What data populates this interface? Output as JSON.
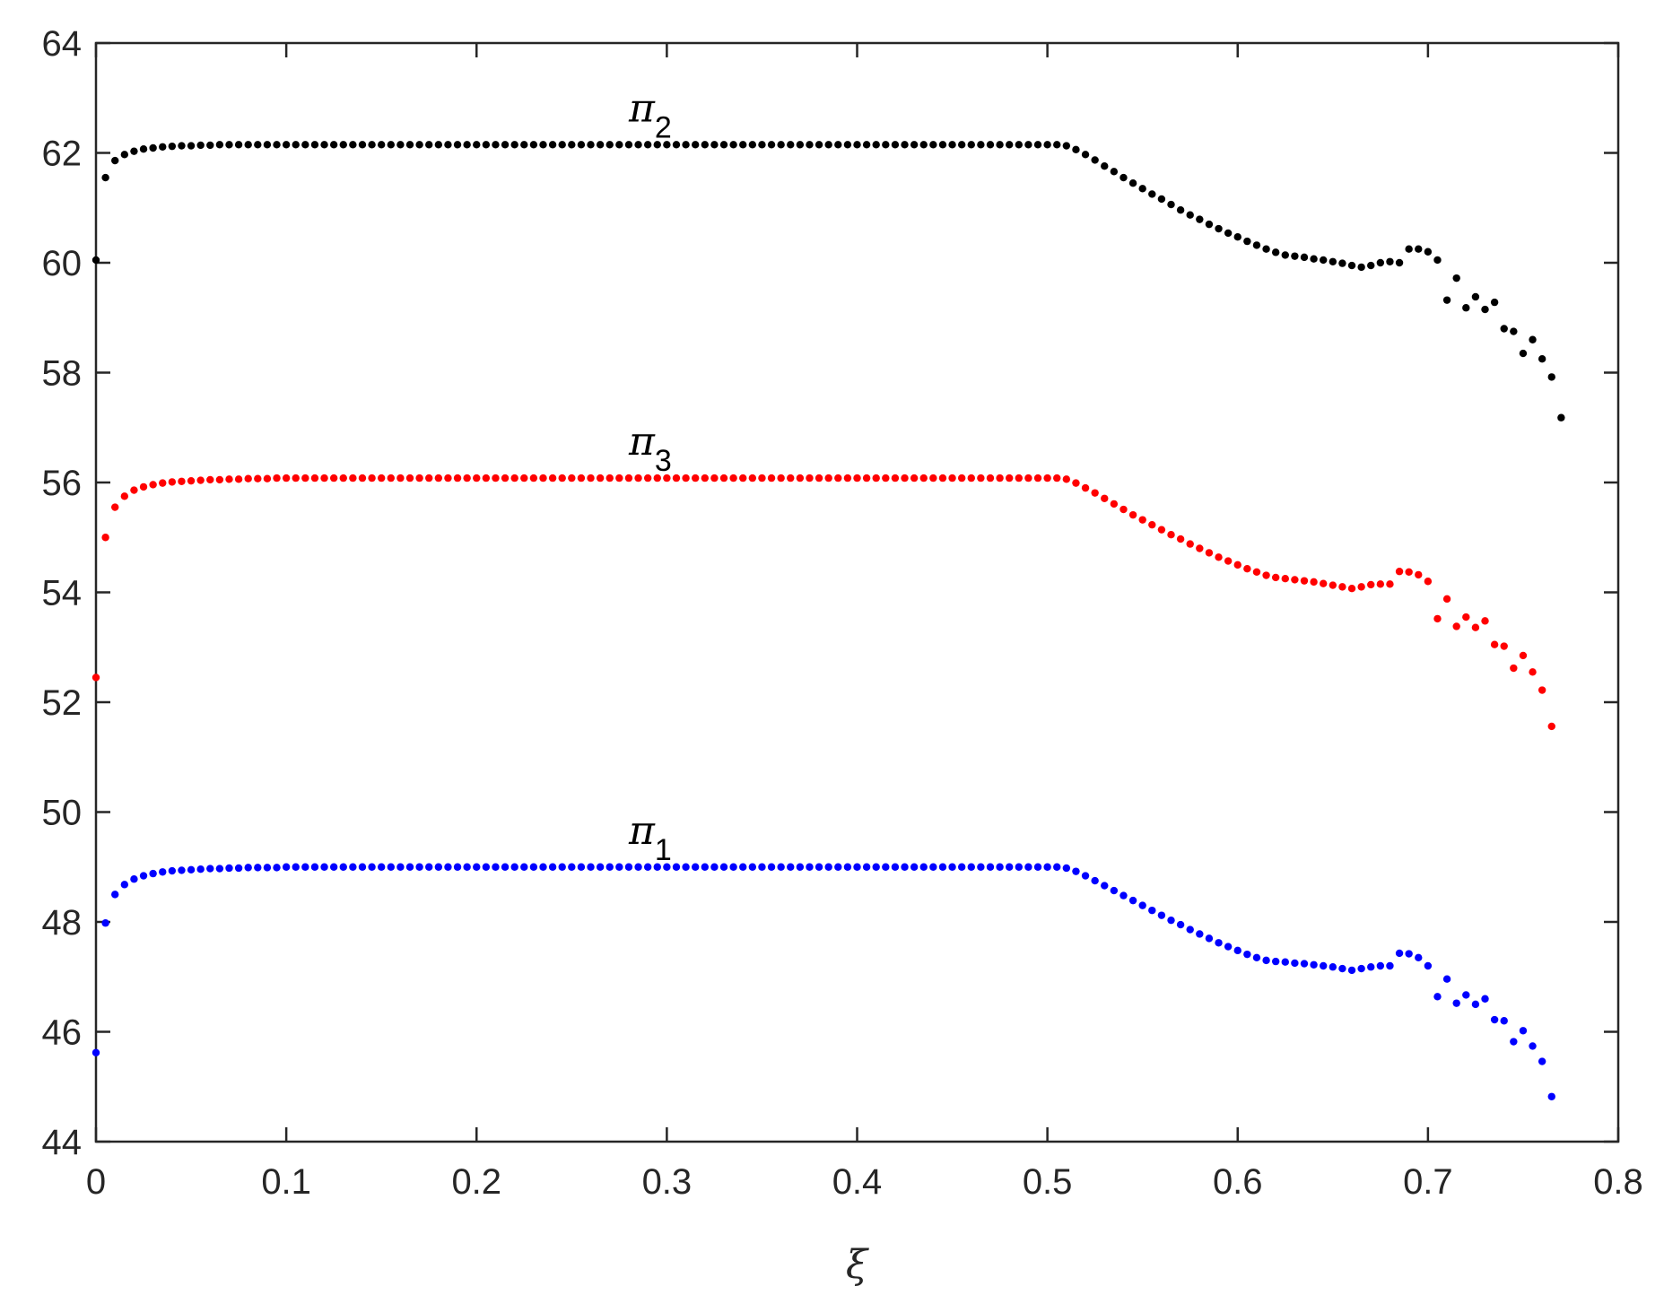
{
  "chart_data": {
    "type": "scatter",
    "xlabel": "ξ",
    "ylabel": "",
    "xlim": [
      0,
      0.8
    ],
    "ylim": [
      44,
      64
    ],
    "xticks": [
      0,
      0.1,
      0.2,
      0.3,
      0.4,
      0.5,
      0.6,
      0.7,
      0.8
    ],
    "xtick_labels": [
      "0",
      "0.1",
      "0.2",
      "0.3",
      "0.4",
      "0.5",
      "0.6",
      "0.7",
      "0.8"
    ],
    "yticks": [
      44,
      46,
      48,
      50,
      52,
      54,
      56,
      58,
      60,
      62,
      64
    ],
    "ytick_labels": [
      "44",
      "46",
      "48",
      "50",
      "52",
      "54",
      "56",
      "58",
      "60",
      "62",
      "64"
    ],
    "grid": false,
    "sampling": "uniform_step",
    "x_step": 0.005,
    "series": [
      {
        "label_main": "π",
        "label_sub": "2",
        "color": "#000000",
        "values": [
          60.05,
          61.55,
          61.86,
          61.97,
          62.03,
          62.07,
          62.09,
          62.11,
          62.12,
          62.13,
          62.13,
          62.14,
          62.14,
          62.15,
          62.15,
          62.15,
          62.15,
          62.15,
          62.15,
          62.15,
          62.15,
          62.15,
          62.15,
          62.15,
          62.15,
          62.15,
          62.15,
          62.15,
          62.15,
          62.15,
          62.15,
          62.15,
          62.15,
          62.15,
          62.15,
          62.15,
          62.15,
          62.15,
          62.15,
          62.15,
          62.15,
          62.15,
          62.15,
          62.15,
          62.15,
          62.15,
          62.15,
          62.15,
          62.15,
          62.15,
          62.15,
          62.15,
          62.15,
          62.15,
          62.15,
          62.15,
          62.15,
          62.15,
          62.15,
          62.15,
          62.15,
          62.15,
          62.15,
          62.15,
          62.15,
          62.15,
          62.15,
          62.15,
          62.15,
          62.15,
          62.15,
          62.15,
          62.15,
          62.15,
          62.15,
          62.15,
          62.15,
          62.15,
          62.15,
          62.15,
          62.15,
          62.15,
          62.15,
          62.15,
          62.15,
          62.15,
          62.15,
          62.15,
          62.15,
          62.15,
          62.15,
          62.15,
          62.15,
          62.15,
          62.15,
          62.15,
          62.15,
          62.15,
          62.15,
          62.15,
          62.15,
          62.15,
          62.13,
          62.06,
          61.97,
          61.87,
          61.76,
          61.66,
          61.55,
          61.45,
          61.35,
          61.25,
          61.16,
          61.06,
          60.96,
          60.87,
          60.79,
          60.7,
          60.62,
          60.54,
          60.47,
          60.39,
          60.32,
          60.25,
          60.19,
          60.14,
          60.12,
          60.1,
          60.07,
          60.05,
          60.02,
          59.99,
          59.95,
          59.92,
          59.95,
          60.0,
          60.02,
          60.0,
          60.25,
          60.25,
          60.2,
          60.05,
          59.32,
          59.72,
          59.18,
          59.38,
          59.15,
          59.28,
          58.8,
          58.75,
          58.35,
          58.6,
          58.25,
          57.92,
          57.18
        ]
      },
      {
        "label_main": "π",
        "label_sub": "3",
        "color": "#ff0000",
        "values": [
          52.45,
          55.0,
          55.55,
          55.75,
          55.86,
          55.92,
          55.96,
          55.99,
          56.01,
          56.02,
          56.03,
          56.04,
          56.05,
          56.05,
          56.06,
          56.06,
          56.07,
          56.07,
          56.07,
          56.08,
          56.08,
          56.08,
          56.08,
          56.08,
          56.08,
          56.08,
          56.08,
          56.08,
          56.08,
          56.08,
          56.08,
          56.08,
          56.08,
          56.08,
          56.08,
          56.08,
          56.08,
          56.08,
          56.08,
          56.08,
          56.08,
          56.08,
          56.08,
          56.08,
          56.08,
          56.08,
          56.08,
          56.08,
          56.08,
          56.08,
          56.08,
          56.08,
          56.08,
          56.08,
          56.08,
          56.08,
          56.08,
          56.08,
          56.08,
          56.08,
          56.08,
          56.08,
          56.08,
          56.08,
          56.08,
          56.08,
          56.08,
          56.08,
          56.08,
          56.08,
          56.08,
          56.08,
          56.08,
          56.08,
          56.08,
          56.08,
          56.08,
          56.08,
          56.08,
          56.08,
          56.08,
          56.08,
          56.08,
          56.08,
          56.08,
          56.08,
          56.08,
          56.08,
          56.08,
          56.08,
          56.08,
          56.08,
          56.08,
          56.08,
          56.08,
          56.08,
          56.08,
          56.08,
          56.08,
          56.08,
          56.08,
          56.08,
          56.06,
          55.99,
          55.9,
          55.81,
          55.71,
          55.61,
          55.51,
          55.41,
          55.32,
          55.23,
          55.14,
          55.05,
          54.97,
          54.88,
          54.8,
          54.72,
          54.64,
          54.57,
          54.5,
          54.43,
          54.37,
          54.31,
          54.27,
          54.25,
          54.23,
          54.21,
          54.19,
          54.16,
          54.13,
          54.1,
          54.07,
          54.1,
          54.14,
          54.15,
          54.15,
          54.38,
          54.37,
          54.32,
          54.2,
          53.52,
          53.88,
          53.38,
          53.55,
          53.36,
          53.48,
          53.05,
          53.02,
          52.62,
          52.85,
          52.55,
          52.22,
          51.56
        ]
      },
      {
        "label_main": "π",
        "label_sub": "1",
        "color": "#0000ff",
        "values": [
          45.62,
          47.98,
          48.5,
          48.68,
          48.78,
          48.84,
          48.88,
          48.91,
          48.93,
          48.94,
          48.95,
          48.96,
          48.97,
          48.97,
          48.98,
          48.98,
          48.99,
          48.99,
          48.99,
          48.99,
          49.0,
          49.0,
          49.0,
          49.0,
          49.0,
          49.0,
          49.0,
          49.0,
          49.0,
          49.0,
          49.0,
          49.0,
          49.0,
          49.0,
          49.0,
          49.0,
          49.0,
          49.0,
          49.0,
          49.0,
          49.0,
          49.0,
          49.0,
          49.0,
          49.0,
          49.0,
          49.0,
          49.0,
          49.0,
          49.0,
          49.0,
          49.0,
          49.0,
          49.0,
          49.0,
          49.0,
          49.0,
          49.0,
          49.0,
          49.0,
          49.0,
          49.0,
          49.0,
          49.0,
          49.0,
          49.0,
          49.0,
          49.0,
          49.0,
          49.0,
          49.0,
          49.0,
          49.0,
          49.0,
          49.0,
          49.0,
          49.0,
          49.0,
          49.0,
          49.0,
          49.0,
          49.0,
          49.0,
          49.0,
          49.0,
          49.0,
          49.0,
          49.0,
          49.0,
          49.0,
          49.0,
          49.0,
          49.0,
          49.0,
          49.0,
          49.0,
          49.0,
          49.0,
          49.0,
          49.0,
          49.0,
          49.0,
          48.98,
          48.92,
          48.84,
          48.75,
          48.66,
          48.57,
          48.48,
          48.39,
          48.3,
          48.21,
          48.12,
          48.03,
          47.95,
          47.86,
          47.78,
          47.7,
          47.62,
          47.55,
          47.48,
          47.41,
          47.35,
          47.3,
          47.28,
          47.27,
          47.25,
          47.24,
          47.22,
          47.2,
          47.18,
          47.15,
          47.12,
          47.15,
          47.18,
          47.2,
          47.2,
          47.43,
          47.42,
          47.35,
          47.2,
          46.64,
          46.96,
          46.52,
          46.67,
          46.5,
          46.6,
          46.22,
          46.2,
          45.82,
          46.02,
          45.74,
          45.46,
          44.82
        ]
      }
    ]
  }
}
